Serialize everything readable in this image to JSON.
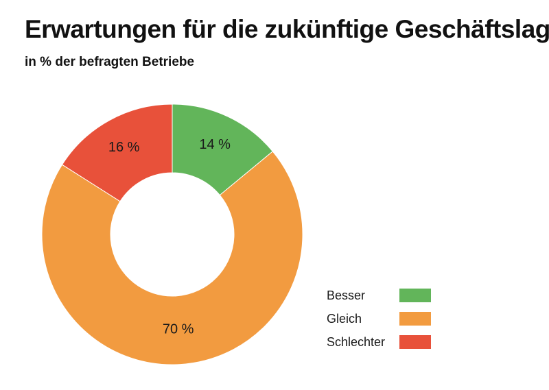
{
  "chart_data": {
    "type": "pie",
    "donut": true,
    "title": "Erwartungen für die zukünftige Geschäftslage",
    "subtitle": "in % der befragten Betriebe",
    "categories": [
      "Besser",
      "Gleich",
      "Schlechter"
    ],
    "values": [
      14,
      70,
      16
    ],
    "data_labels": [
      "14 %",
      "70 %",
      "16 %"
    ],
    "colors": [
      "#62b55a",
      "#f29b40",
      "#e8513a"
    ],
    "start_angle_deg": 0,
    "direction": "clockwise",
    "legend_position": "bottom-right"
  }
}
